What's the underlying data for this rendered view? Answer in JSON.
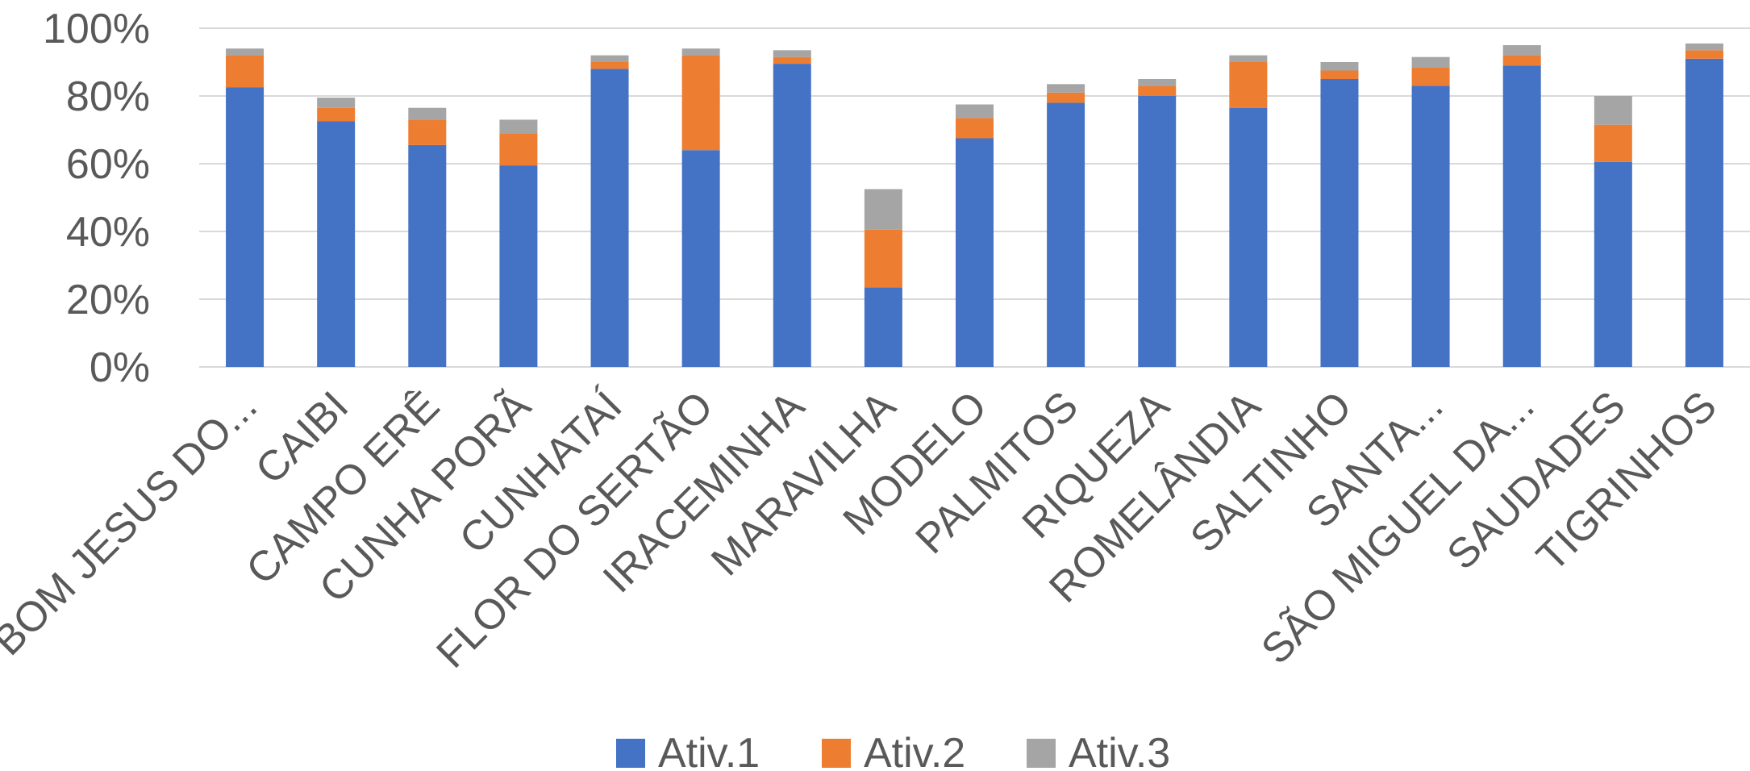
{
  "chart_data": {
    "type": "bar",
    "stacked": true,
    "title": "",
    "xlabel": "",
    "ylabel": "",
    "ylim": [
      0,
      100
    ],
    "y_ticks": [
      0,
      20,
      40,
      60,
      80,
      100
    ],
    "y_tick_labels": [
      "0%",
      "20%",
      "40%",
      "60%",
      "80%",
      "100%"
    ],
    "grid": true,
    "legend_position": "bottom",
    "categories": [
      "BOM JESUS DO...",
      "CAIBI",
      "CAMPO ERÊ",
      "CUNHA PORÃ",
      "CUNHATAÍ",
      "FLOR DO SERTÃO",
      "IRACEMINHA",
      "MARAVILHA",
      "MODELO",
      "PALMITOS",
      "RIQUEZA",
      "ROMELÂNDIA",
      "SALTINHO",
      "SANTA...",
      "SÃO MIGUEL DA...",
      "SAUDADES",
      "TIGRINHOS"
    ],
    "series": [
      {
        "name": "Ativ.1",
        "color": "#4472c4",
        "values": [
          82.5,
          72.5,
          65.5,
          59.5,
          88,
          64,
          89.5,
          23.5,
          67.5,
          78,
          80,
          76.5,
          85,
          83,
          89,
          60.5,
          91
        ]
      },
      {
        "name": "Ativ.2",
        "color": "#ed7d31",
        "values": [
          9.5,
          4,
          7.5,
          9.5,
          2,
          28,
          2,
          17,
          6,
          3,
          3,
          13.5,
          2.5,
          5.5,
          3,
          11,
          2.5
        ]
      },
      {
        "name": "Ativ.3",
        "color": "#a5a5a5",
        "values": [
          2,
          3,
          3.5,
          4,
          2,
          2,
          2,
          12,
          4,
          2.5,
          2,
          2,
          2.5,
          3,
          3,
          8.5,
          2
        ]
      }
    ]
  }
}
